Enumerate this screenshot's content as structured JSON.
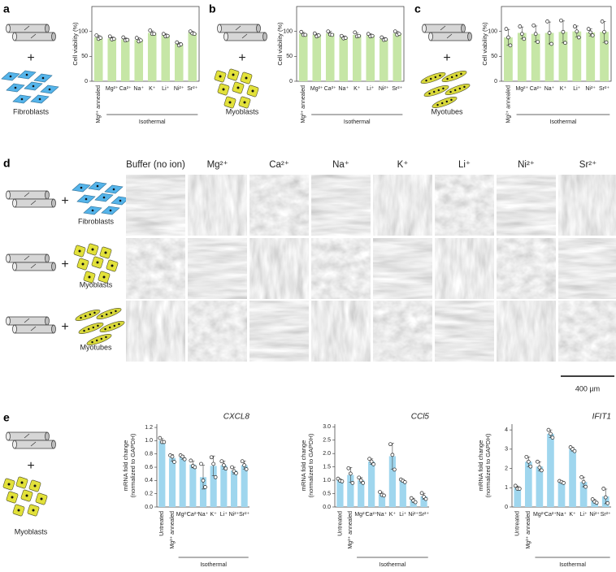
{
  "figure": {
    "panels": [
      "a",
      "b",
      "c",
      "d",
      "e"
    ],
    "cells": [
      "Fibroblasts",
      "Myoblasts",
      "Myotubes"
    ],
    "plus": "+",
    "columns": [
      "Buffer (no ion)",
      "Mg²⁺",
      "Ca²⁺",
      "Na⁺",
      "K⁺",
      "Li⁺",
      "Ni²⁺",
      "Sr²⁺"
    ],
    "scale_bar": "400 µm"
  },
  "chart_data": [
    {
      "type": "bar",
      "ylabel": "Cell viability (%)",
      "categories": [
        "Mg²⁺ annealed",
        "Mg²⁺",
        "Ca²⁺",
        "Na⁺",
        "K⁺",
        "Li⁺",
        "Ni²⁺",
        "Sr²⁺"
      ],
      "group_label": "Isothermal",
      "values": [
        88,
        86,
        84,
        83,
        97,
        92,
        75,
        97
      ],
      "errors": [
        4,
        3,
        3,
        4,
        4,
        3,
        3,
        3
      ],
      "points": [
        [
          92,
          85,
          87
        ],
        [
          90,
          84,
          85
        ],
        [
          88,
          82,
          83
        ],
        [
          87,
          80,
          82
        ],
        [
          102,
          95,
          95
        ],
        [
          95,
          90,
          91
        ],
        [
          78,
          72,
          74
        ],
        [
          100,
          96,
          95
        ]
      ],
      "color": "#c6e6a6",
      "ylim": [
        0,
        150
      ],
      "yticks": [
        0,
        50,
        100
      ],
      "frame": true
    },
    {
      "type": "bar",
      "ylabel": "Cell viability (%)",
      "categories": [
        "Mg²⁺ annealed",
        "Mg²⁺",
        "Ca²⁺",
        "Na⁺",
        "K⁺",
        "Li⁺",
        "Ni²⁺",
        "Sr²⁺"
      ],
      "group_label": "Isothermal",
      "values": [
        95,
        93,
        96,
        88,
        93,
        92,
        85,
        96
      ],
      "errors": [
        3,
        3,
        4,
        3,
        4,
        3,
        3,
        4
      ],
      "points": [
        [
          99,
          93,
          93
        ],
        [
          96,
          90,
          92
        ],
        [
          100,
          94,
          93
        ],
        [
          91,
          86,
          87
        ],
        [
          98,
          90,
          91
        ],
        [
          95,
          90,
          91
        ],
        [
          88,
          83,
          84
        ],
        [
          100,
          93,
          95
        ]
      ],
      "color": "#c6e6a6",
      "ylim": [
        0,
        150
      ],
      "yticks": [
        0,
        50,
        100
      ],
      "frame": true
    },
    {
      "type": "bar",
      "ylabel": "Cell viability (%)",
      "categories": [
        "Mg²⁺ annealed",
        "Mg²⁺",
        "Ca²⁺",
        "Na⁺",
        "K⁺",
        "Li⁺",
        "Ni²⁺",
        "Sr²⁺"
      ],
      "group_label": "Isothermal",
      "values": [
        88,
        97,
        95,
        97,
        99,
        100,
        98,
        99
      ],
      "errors": [
        16,
        12,
        16,
        22,
        22,
        11,
        7,
        21
      ],
      "points": [
        [
          105,
          88,
          72
        ],
        [
          110,
          95,
          85
        ],
        [
          112,
          95,
          79
        ],
        [
          120,
          97,
          75
        ],
        [
          122,
          99,
          77
        ],
        [
          110,
          100,
          88
        ],
        [
          105,
          98,
          92
        ],
        [
          120,
          99,
          78
        ]
      ],
      "color": "#c6e6a6",
      "ylim": [
        0,
        150
      ],
      "yticks": [
        0,
        50,
        100
      ],
      "frame": true
    },
    {
      "type": "bar",
      "title": "CXCL8",
      "ylabel": [
        "mRNA fold change",
        "(normalized to GAPDH)"
      ],
      "categories": [
        "Untreated",
        "Mg²⁺ annealed",
        "Mg²⁺",
        "Ca²⁺",
        "Na⁺",
        "K⁺",
        "Li⁺",
        "Ni²⁺",
        "Sr²⁺"
      ],
      "group_label": "Isothermal",
      "values": [
        1.0,
        0.74,
        0.75,
        0.64,
        0.45,
        0.62,
        0.63,
        0.55,
        0.63
      ],
      "errors": [
        0.03,
        0.05,
        0.03,
        0.05,
        0.18,
        0.15,
        0.06,
        0.05,
        0.06
      ],
      "points": [
        [
          1.04,
          0.98,
          0.98
        ],
        [
          0.78,
          0.76,
          0.68
        ],
        [
          0.78,
          0.76,
          0.72
        ],
        [
          0.7,
          0.62,
          0.6
        ],
        [
          0.65,
          0.4,
          0.3
        ],
        [
          0.75,
          0.65,
          0.45
        ],
        [
          0.69,
          0.63,
          0.58
        ],
        [
          0.6,
          0.54,
          0.51
        ],
        [
          0.69,
          0.63,
          0.57
        ]
      ],
      "color": "#9fd6ee",
      "ylim": [
        0,
        1.25
      ],
      "yticks": [
        {
          "value": 0,
          "label": "0.0"
        },
        0.2,
        0.4,
        0.6,
        0.8,
        {
          "value": 1,
          "label": "1.0"
        },
        1.2
      ],
      "frame": false
    },
    {
      "type": "bar",
      "title": "CCl5",
      "ylabel": [
        "mRNA fold change",
        "(normalized to GAPDH)"
      ],
      "categories": [
        "Untreated",
        "Mg²⁺ annealed",
        "Mg²⁺",
        "Ca²⁺",
        "Na⁺",
        "K⁺",
        "Li⁺",
        "Ni²⁺",
        "Sr²⁺"
      ],
      "group_label": "Isothermal",
      "values": [
        1.0,
        1.2,
        1.0,
        1.7,
        0.48,
        1.9,
        0.98,
        0.25,
        0.4
      ],
      "errors": [
        0.05,
        0.28,
        0.1,
        0.1,
        0.07,
        0.48,
        0.05,
        0.08,
        0.11
      ],
      "points": [
        [
          1.06,
          0.98,
          0.96
        ],
        [
          1.45,
          1.25,
          0.9
        ],
        [
          1.1,
          1.0,
          0.9
        ],
        [
          1.8,
          1.7,
          1.6
        ],
        [
          0.56,
          0.45,
          0.43
        ],
        [
          2.35,
          1.95,
          1.4
        ],
        [
          1.03,
          0.98,
          0.93
        ],
        [
          0.33,
          0.24,
          0.18
        ],
        [
          0.52,
          0.38,
          0.3
        ]
      ],
      "color": "#9fd6ee",
      "ylim": [
        0,
        3.1
      ],
      "yticks": [
        {
          "value": 0,
          "label": "0.0"
        },
        0.5,
        {
          "value": 1,
          "label": "1.0"
        },
        1.5,
        {
          "value": 2,
          "label": "2.0"
        },
        2.5,
        {
          "value": 3,
          "label": "3.0"
        }
      ],
      "frame": false
    },
    {
      "type": "bar",
      "title": "IFIT1",
      "ylabel": [
        "mRNA fold change",
        "(normalized to GAPDH)"
      ],
      "categories": [
        "Untreated",
        "Mg²⁺ annealed",
        "Mg²⁺",
        "Ca²⁺",
        "Na⁺",
        "K⁺",
        "Li⁺",
        "Ni²⁺",
        "Sr²⁺"
      ],
      "group_label": "Isothermal",
      "values": [
        1.0,
        2.35,
        2.1,
        3.8,
        1.3,
        3.0,
        1.3,
        0.3,
        0.55
      ],
      "errors": [
        0.09,
        0.25,
        0.23,
        0.2,
        0.05,
        0.1,
        0.25,
        0.09,
        0.38
      ],
      "points": [
        [
          1.1,
          0.95,
          0.95
        ],
        [
          2.6,
          2.35,
          2.1
        ],
        [
          2.35,
          2.05,
          1.9
        ],
        [
          4.0,
          3.8,
          3.6
        ],
        [
          1.35,
          1.3,
          1.25
        ],
        [
          3.1,
          3.0,
          2.9
        ],
        [
          1.55,
          1.3,
          1.05
        ],
        [
          0.4,
          0.28,
          0.22
        ],
        [
          0.95,
          0.5,
          0.2
        ]
      ],
      "color": "#9fd6ee",
      "ylim": [
        0,
        4.3
      ],
      "yticks": [
        0,
        1,
        2,
        3,
        4
      ],
      "frame": false
    }
  ]
}
